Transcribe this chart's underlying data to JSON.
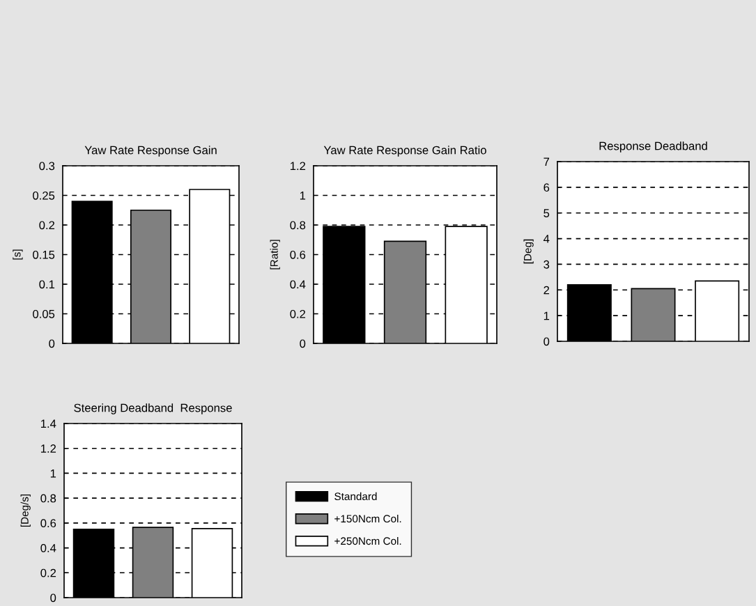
{
  "chart_data": [
    {
      "type": "bar",
      "title": "Yaw Rate Response Gain",
      "ylabel": "[s]",
      "categories": [
        null
      ],
      "ylim": [
        0,
        0.3
      ],
      "yticks": [
        0,
        0.05,
        0.1,
        0.15,
        0.2,
        0.25,
        0.3
      ],
      "grid": "y",
      "series": [
        {
          "color": "#000000",
          "values": [
            0.24
          ]
        },
        {
          "color": "#808080",
          "values": [
            0.225
          ]
        },
        {
          "color": "#ffffff",
          "values": [
            0.26
          ]
        }
      ]
    },
    {
      "type": "bar",
      "title": "Yaw Rate Response Gain Ratio",
      "ylabel": "[Ratio]",
      "categories": [
        null
      ],
      "ylim": [
        0,
        1.2
      ],
      "yticks": [
        0,
        0.2,
        0.4,
        0.6,
        0.8,
        1,
        1.2
      ],
      "grid": "y",
      "series": [
        {
          "color": "#000000",
          "values": [
            0.79
          ]
        },
        {
          "color": "#808080",
          "values": [
            0.69
          ]
        },
        {
          "color": "#ffffff",
          "values": [
            0.79
          ]
        }
      ]
    },
    {
      "type": "bar",
      "title": "Response Deadband",
      "ylabel": "[Deg]",
      "categories": [
        null
      ],
      "ylim": [
        0,
        7
      ],
      "yticks": [
        0,
        1,
        2,
        3,
        4,
        5,
        6,
        7
      ],
      "grid": "y",
      "series": [
        {
          "color": "#000000",
          "values": [
            2.2
          ]
        },
        {
          "color": "#808080",
          "values": [
            2.05
          ]
        },
        {
          "color": "#ffffff",
          "values": [
            2.35
          ]
        }
      ]
    },
    {
      "type": "bar",
      "title": "Steering Deadband  Response",
      "ylabel": "[Deg/s]",
      "categories": [
        null
      ],
      "ylim": [
        0,
        1.4
      ],
      "yticks": [
        0,
        0.2,
        0.4,
        0.6,
        0.8,
        1,
        1.2,
        1.4
      ],
      "grid": "y",
      "legend": "right",
      "series": [
        {
          "name": "Standard",
          "color": "#000000",
          "values": [
            0.55
          ]
        },
        {
          "name": "+150Ncm Col.",
          "color": "#808080",
          "values": [
            0.565
          ]
        },
        {
          "name": "+250Ncm Col.",
          "color": "#ffffff",
          "values": [
            0.555
          ]
        }
      ]
    }
  ]
}
